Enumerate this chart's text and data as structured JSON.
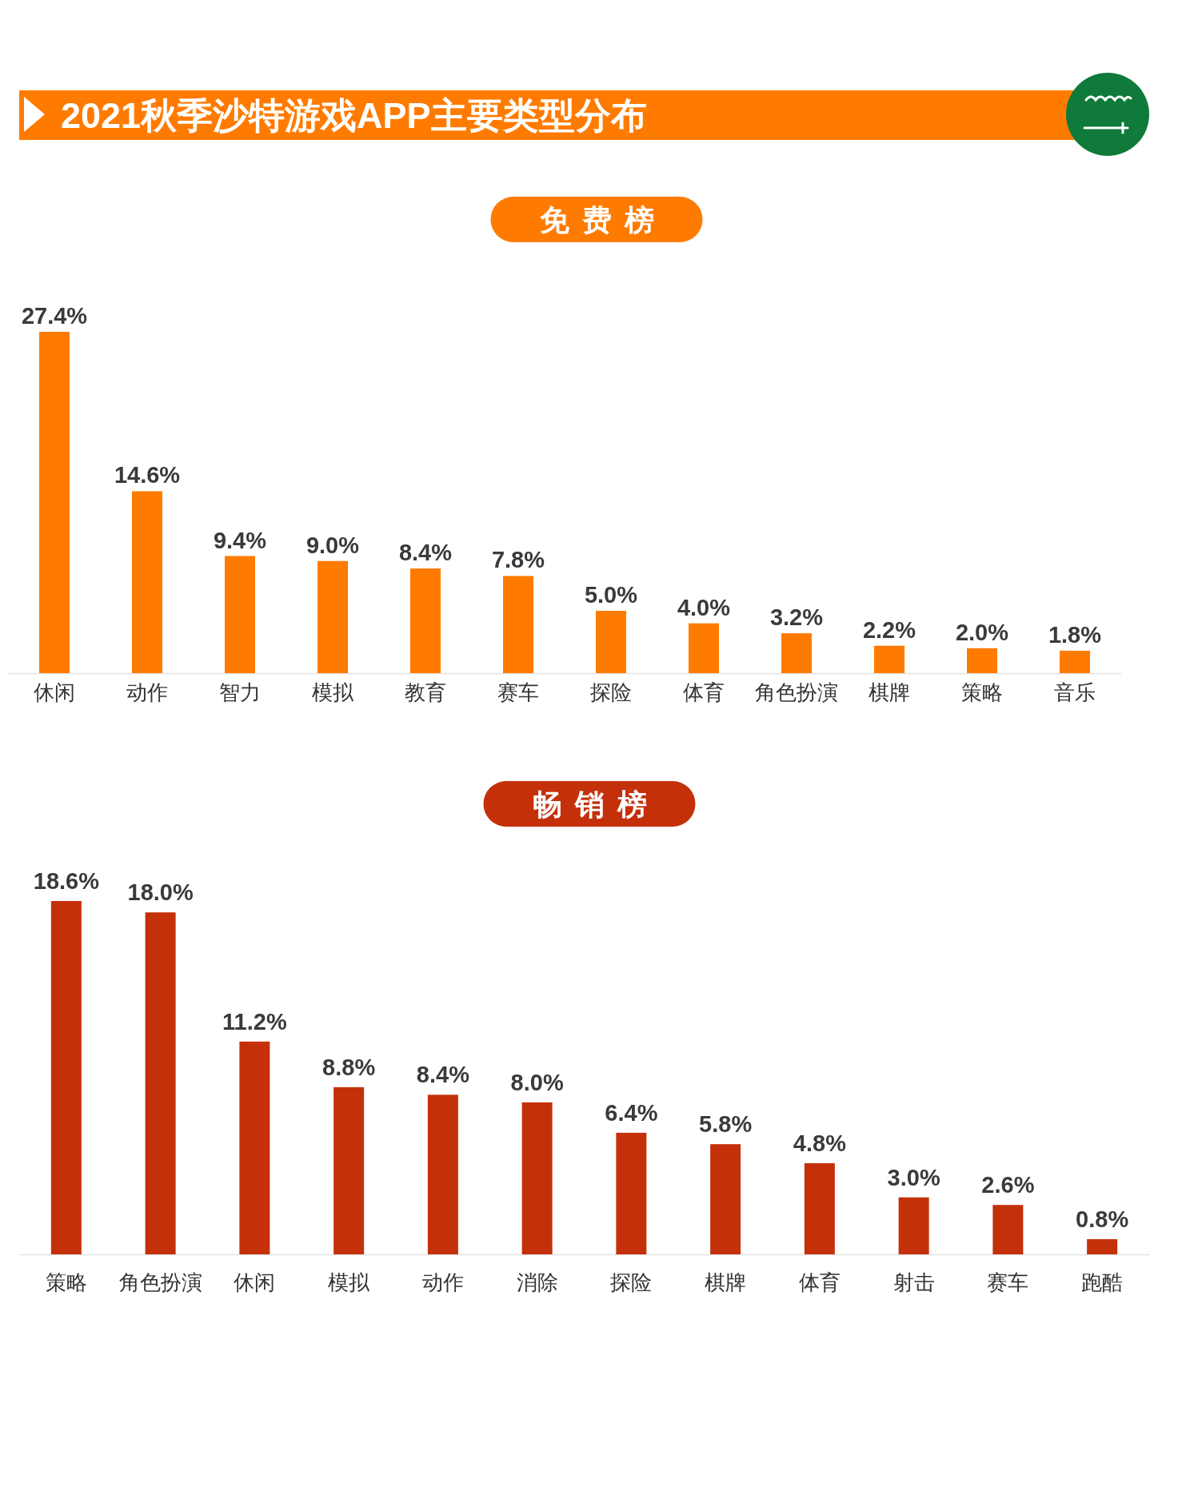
{
  "chart_data": [
    {
      "type": "bar",
      "title": "2021秋季沙特游戏APP主要类型分布",
      "subtitle": "免费榜",
      "color": "#ff7b00",
      "categories": [
        "休闲",
        "动作",
        "智力",
        "模拟",
        "教育",
        "赛车",
        "探险",
        "体育",
        "角色扮演",
        "棋牌",
        "策略",
        "音乐"
      ],
      "values": [
        27.4,
        14.6,
        9.4,
        9.0,
        8.4,
        7.8,
        5.0,
        4.0,
        3.2,
        2.2,
        2.0,
        1.8
      ],
      "value_labels": [
        "27.4%",
        "14.6%",
        "9.4%",
        "9.0%",
        "8.4%",
        "7.8%",
        "5.0%",
        "4.0%",
        "3.2%",
        "2.2%",
        "2.0%",
        "1.8%"
      ]
    },
    {
      "type": "bar",
      "subtitle": "畅销榜",
      "color": "#c4300a",
      "categories": [
        "策略",
        "角色扮演",
        "休闲",
        "模拟",
        "动作",
        "消除",
        "探险",
        "棋牌",
        "体育",
        "射击",
        "赛车",
        "跑酷"
      ],
      "values": [
        18.6,
        18.0,
        11.2,
        8.8,
        8.4,
        8.0,
        6.4,
        5.8,
        4.8,
        3.0,
        2.6,
        0.8
      ],
      "value_labels": [
        "18.6%",
        "18.0%",
        "11.2%",
        "8.8%",
        "8.4%",
        "8.0%",
        "6.4%",
        "5.8%",
        "4.8%",
        "3.0%",
        "2.6%",
        "0.8%"
      ]
    }
  ]
}
